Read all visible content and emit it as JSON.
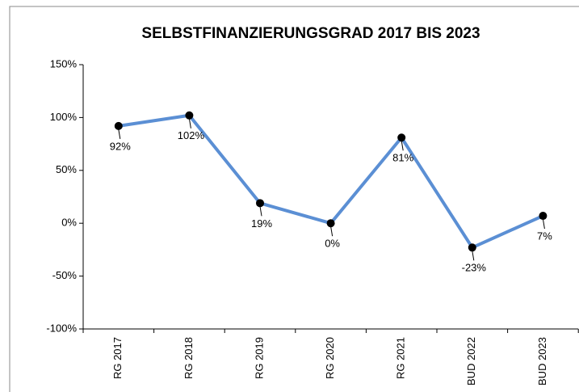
{
  "chart_data": {
    "type": "line",
    "title": "SELBSTFINANZIERUNGSGRAD 2017 BIS 2023",
    "categories": [
      "RG 2017",
      "RG 2018",
      "RG 2019",
      "RG 2020",
      "RG 2021",
      "BUD 2022",
      "BUD 2023"
    ],
    "series": [
      {
        "name": "Selbstfinanzierungsgrad",
        "color": "#5b8fd4",
        "marker_color": "#000000",
        "values": [
          92,
          102,
          19,
          0,
          81,
          -23,
          7
        ],
        "value_labels": [
          "92%",
          "102%",
          "19%",
          "0%",
          "81%",
          "-23%",
          "7%"
        ]
      }
    ],
    "ylim": [
      -100,
      150
    ],
    "yticks": [
      {
        "value": -100,
        "label": "-100%"
      },
      {
        "value": -50,
        "label": "-50%"
      },
      {
        "value": 0,
        "label": "0%"
      },
      {
        "value": 50,
        "label": "50%"
      },
      {
        "value": 100,
        "label": "100%"
      },
      {
        "value": 150,
        "label": "150%"
      }
    ]
  }
}
